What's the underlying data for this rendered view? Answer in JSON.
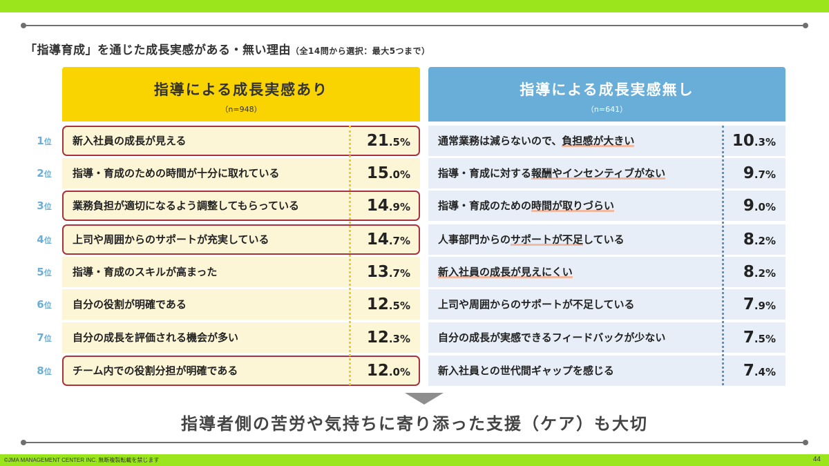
{
  "header": {
    "title": "「指導育成」を通じた成長実感がある・無い理由",
    "title_note": "（全14問から選択：最大5つまで）"
  },
  "rank_unit": "位",
  "pct_unit": "%",
  "left": {
    "title": "指導による成長実感あり",
    "n": "（n=948）",
    "items": [
      {
        "rank": "1",
        "label": "新入社員の成長が見える",
        "pct_int": "21",
        "pct_dec": ".5"
      },
      {
        "rank": "2",
        "label": "指導・育成のための時間が十分に取れている",
        "pct_int": "15",
        "pct_dec": ".0"
      },
      {
        "rank": "3",
        "label": "業務負担が適切になるよう調整してもらっている",
        "pct_int": "14",
        "pct_dec": ".9"
      },
      {
        "rank": "4",
        "label": "上司や周囲からのサポートが充実している",
        "pct_int": "14",
        "pct_dec": ".7"
      },
      {
        "rank": "5",
        "label": "指導・育成のスキルが高まった",
        "pct_int": "13",
        "pct_dec": ".7"
      },
      {
        "rank": "6",
        "label": "自分の役割が明確である",
        "pct_int": "12",
        "pct_dec": ".5"
      },
      {
        "rank": "7",
        "label": "自分の成長を評価される機会が多い",
        "pct_int": "12",
        "pct_dec": ".3"
      },
      {
        "rank": "8",
        "label": "チーム内での役割分担が明確である",
        "pct_int": "12",
        "pct_dec": ".0"
      }
    ]
  },
  "right": {
    "title": "指導による成長実感無し",
    "n": "（n=641）",
    "items": [
      {
        "pre": "通常業務は減らないので、",
        "hl": "負担感が大きい",
        "post": "",
        "pct_int": "10",
        "pct_dec": ".3"
      },
      {
        "pre": "指導・育成に対する",
        "hl": "報酬やインセンティブがない",
        "post": "",
        "pct_int": "9",
        "pct_dec": ".7"
      },
      {
        "pre": "指導・育成のための",
        "hl": "時間が取りづらい",
        "post": "",
        "pct_int": "9",
        "pct_dec": ".0"
      },
      {
        "pre": "人事部門からの",
        "hl": "サポートが不足",
        "post": "している",
        "pct_int": "8",
        "pct_dec": ".2"
      },
      {
        "pre": "",
        "hl": "新入社員の成長が見えにくい",
        "post": "",
        "pct_int": "8",
        "pct_dec": ".2"
      },
      {
        "pre": "上司や周囲からのサポートが不足している",
        "hl": "",
        "post": "",
        "pct_int": "7",
        "pct_dec": ".9"
      },
      {
        "pre": "自分の成長が実感できるフィードバックが少ない",
        "hl": "",
        "post": "",
        "pct_int": "7",
        "pct_dec": ".5"
      },
      {
        "pre": "新入社員との世代間ギャップを感じる",
        "hl": "",
        "post": "",
        "pct_int": "7",
        "pct_dec": ".4"
      }
    ]
  },
  "conclusion": "指導者側の苦労や気持ちに寄り添った支援（ケア）も大切",
  "footer": {
    "copyright": "©JMA MANAGEMENT CENTER INC. 無断複製転載を禁じます",
    "page": "44"
  },
  "colors": {
    "accent_green": "#9be51c",
    "left_header": "#f9d400",
    "right_header": "#68aed8",
    "highlight_box": "#a8313c",
    "rank_blue": "#68aed8"
  }
}
